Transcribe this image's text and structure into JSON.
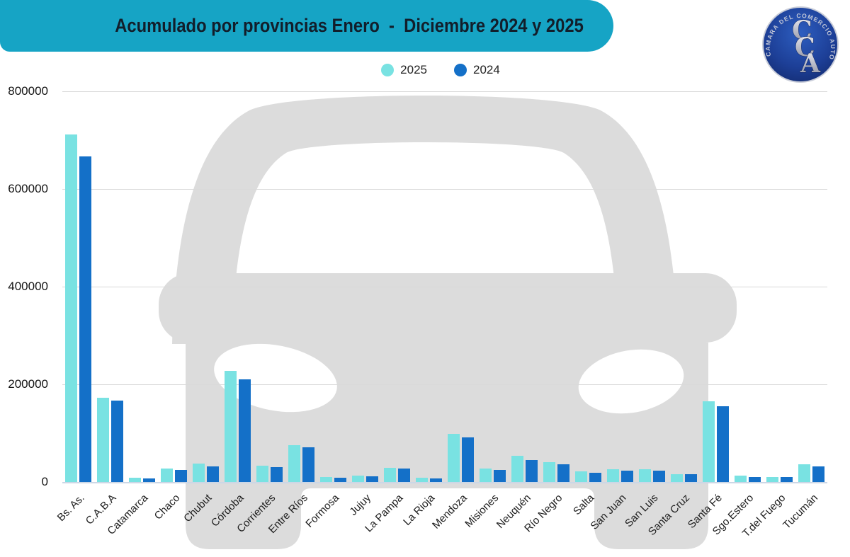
{
  "header": {
    "title": "Acumulado por provincias Enero  -  Diciembre 2024 y 2025",
    "banner_color": "#16a4c5",
    "title_color": "#121e2b"
  },
  "logo": {
    "ring_text": "CAMARA DEL COMERCIO AUTOMOTOR",
    "monogram_letters": [
      "C",
      "C",
      "A"
    ],
    "bg_color": "#1d3f97",
    "text_color": "#c3c8d8"
  },
  "legend": [
    {
      "label": "2025",
      "color": "#79e2e2"
    },
    {
      "label": "2024",
      "color": "#1470c8"
    }
  ],
  "watermark": {
    "name": "car-front-silhouette",
    "color": "#dcdcdc"
  },
  "chart_data": {
    "type": "bar",
    "title": "Acumulado por provincias Enero - Diciembre 2024 y 2025",
    "xlabel": "",
    "ylabel": "",
    "ylim": [
      0,
      800000
    ],
    "yticks": [
      0,
      200000,
      400000,
      600000,
      800000
    ],
    "grid": true,
    "legend_position": "top",
    "categories": [
      "Bs. As.",
      "C.A.B.A",
      "Catamarca",
      "Chaco",
      "Chubut",
      "Córdoba",
      "Corrientes",
      "Entre Ríos",
      "Formosa",
      "Jujuy",
      "La Pampa",
      "La Rioja",
      "Mendoza",
      "Misiones",
      "Neuquén",
      "Río Negro",
      "Salta",
      "San Juan",
      "San Luis",
      "Santa Cruz",
      "Santa Fé",
      "Sgo.Estero",
      "T.del Fuego",
      "Tucumán"
    ],
    "series": [
      {
        "name": "2025",
        "color": "#79e2e2",
        "values": [
          711000,
          173000,
          9000,
          28000,
          37000,
          228000,
          33000,
          76000,
          10500,
          13500,
          29000,
          9000,
          99000,
          27000,
          53000,
          41000,
          22000,
          25500,
          25500,
          16000,
          165000,
          12500,
          10000,
          36500
        ]
      },
      {
        "name": "2024",
        "color": "#1470c8",
        "values": [
          667000,
          167000,
          7500,
          24500,
          32000,
          210000,
          30000,
          71000,
          8500,
          11500,
          27000,
          7500,
          92000,
          24500,
          44500,
          36500,
          19500,
          23000,
          23500,
          15500,
          154500,
          10000,
          9500,
          32500
        ]
      }
    ]
  }
}
